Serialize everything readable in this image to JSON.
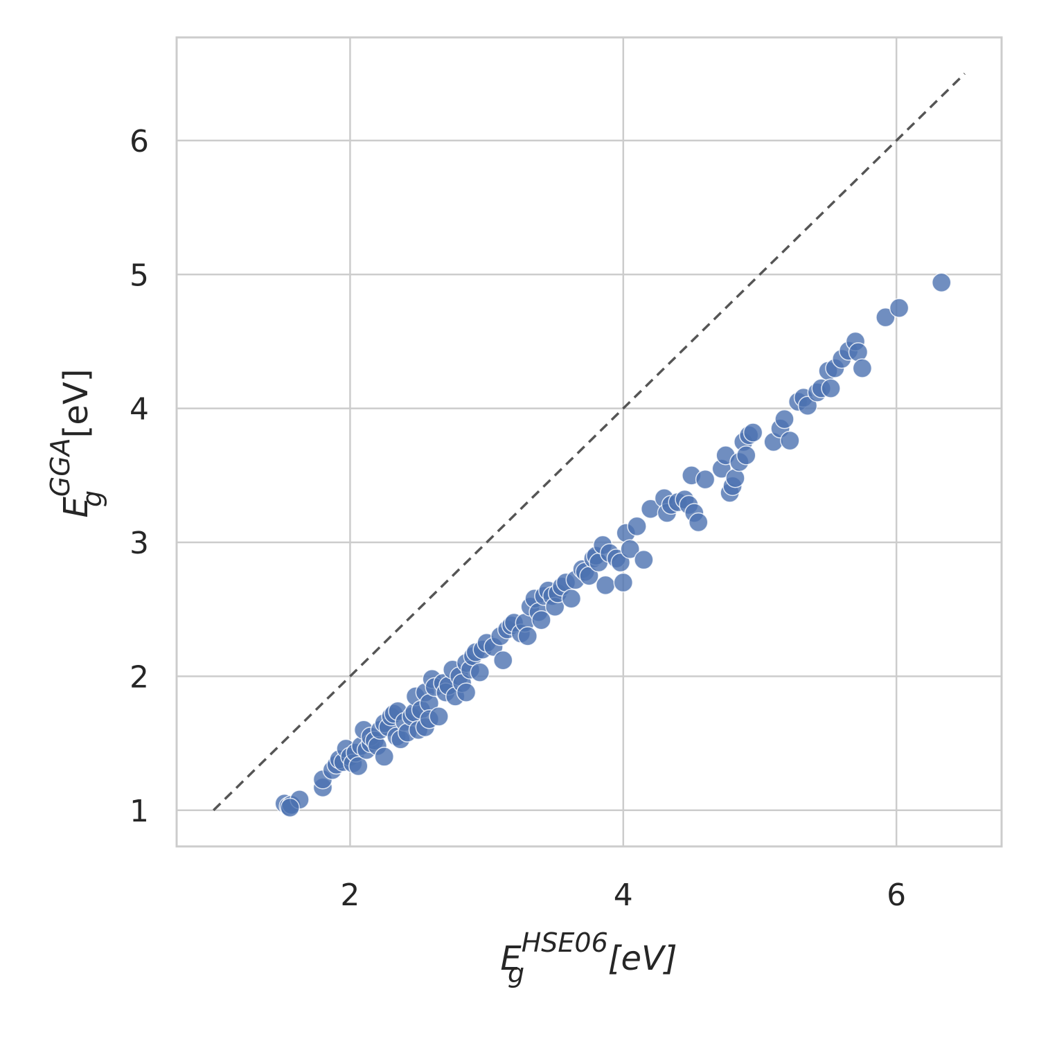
{
  "chart_data": {
    "type": "scatter",
    "xlabel": {
      "base": "E",
      "sub": "g",
      "sup": "HSE06",
      "unit": "[eV]"
    },
    "ylabel": {
      "base": "E",
      "sub": "g",
      "sup": "GGA",
      "unit": "[eV]"
    },
    "xlim": [
      0.73,
      6.77
    ],
    "ylim": [
      0.73,
      6.77
    ],
    "xticks": [
      2,
      4,
      6
    ],
    "yticks": [
      1,
      2,
      3,
      4,
      5,
      6
    ],
    "xtick_labels": [
      "2",
      "4",
      "6"
    ],
    "ytick_labels": [
      "1",
      "2",
      "3",
      "4",
      "5",
      "6"
    ],
    "grid": true,
    "point_color": "#4c72b0",
    "reference_line": {
      "style": "dashed",
      "color": "#555555",
      "x": [
        1.0,
        6.5
      ],
      "y": [
        1.0,
        6.5
      ]
    },
    "points": [
      [
        1.52,
        1.05
      ],
      [
        1.55,
        1.03
      ],
      [
        1.57,
        1.04
      ],
      [
        1.63,
        1.08
      ],
      [
        1.56,
        1.02
      ],
      [
        1.8,
        1.17
      ],
      [
        1.8,
        1.23
      ],
      [
        1.87,
        1.3
      ],
      [
        1.9,
        1.34
      ],
      [
        1.92,
        1.38
      ],
      [
        1.95,
        1.36
      ],
      [
        1.97,
        1.46
      ],
      [
        2.0,
        1.4
      ],
      [
        2.02,
        1.35
      ],
      [
        2.04,
        1.43
      ],
      [
        2.06,
        1.33
      ],
      [
        2.08,
        1.48
      ],
      [
        2.1,
        1.6
      ],
      [
        2.12,
        1.45
      ],
      [
        2.15,
        1.5
      ],
      [
        2.15,
        1.55
      ],
      [
        2.18,
        1.52
      ],
      [
        2.2,
        1.48
      ],
      [
        2.22,
        1.6
      ],
      [
        2.25,
        1.65
      ],
      [
        2.25,
        1.4
      ],
      [
        2.28,
        1.62
      ],
      [
        2.3,
        1.7
      ],
      [
        2.32,
        1.72
      ],
      [
        2.34,
        1.55
      ],
      [
        2.35,
        1.74
      ],
      [
        2.37,
        1.53
      ],
      [
        2.4,
        1.66
      ],
      [
        2.42,
        1.58
      ],
      [
        2.45,
        1.7
      ],
      [
        2.47,
        1.73
      ],
      [
        2.48,
        1.85
      ],
      [
        2.5,
        1.6
      ],
      [
        2.52,
        1.75
      ],
      [
        2.55,
        1.62
      ],
      [
        2.55,
        1.88
      ],
      [
        2.58,
        1.8
      ],
      [
        2.58,
        1.68
      ],
      [
        2.6,
        1.98
      ],
      [
        2.62,
        1.92
      ],
      [
        2.65,
        1.7
      ],
      [
        2.68,
        1.95
      ],
      [
        2.7,
        1.88
      ],
      [
        2.72,
        1.93
      ],
      [
        2.75,
        2.05
      ],
      [
        2.77,
        1.85
      ],
      [
        2.8,
        2.0
      ],
      [
        2.82,
        1.95
      ],
      [
        2.85,
        2.1
      ],
      [
        2.85,
        1.88
      ],
      [
        2.88,
        2.05
      ],
      [
        2.9,
        2.15
      ],
      [
        2.92,
        2.18
      ],
      [
        2.95,
        2.03
      ],
      [
        2.97,
        2.2
      ],
      [
        3.0,
        2.25
      ],
      [
        3.05,
        2.22
      ],
      [
        3.1,
        2.3
      ],
      [
        3.12,
        2.12
      ],
      [
        3.15,
        2.35
      ],
      [
        3.18,
        2.38
      ],
      [
        3.2,
        2.4
      ],
      [
        3.25,
        2.32
      ],
      [
        3.28,
        2.4
      ],
      [
        3.3,
        2.3
      ],
      [
        3.32,
        2.52
      ],
      [
        3.35,
        2.58
      ],
      [
        3.38,
        2.48
      ],
      [
        3.4,
        2.42
      ],
      [
        3.42,
        2.6
      ],
      [
        3.45,
        2.64
      ],
      [
        3.48,
        2.6
      ],
      [
        3.5,
        2.52
      ],
      [
        3.52,
        2.62
      ],
      [
        3.55,
        2.67
      ],
      [
        3.58,
        2.7
      ],
      [
        3.62,
        2.58
      ],
      [
        3.65,
        2.72
      ],
      [
        3.7,
        2.8
      ],
      [
        3.72,
        2.78
      ],
      [
        3.75,
        2.75
      ],
      [
        3.78,
        2.88
      ],
      [
        3.8,
        2.9
      ],
      [
        3.82,
        2.85
      ],
      [
        3.85,
        2.98
      ],
      [
        3.87,
        2.68
      ],
      [
        3.9,
        2.92
      ],
      [
        3.95,
        2.88
      ],
      [
        3.98,
        2.85
      ],
      [
        4.0,
        2.7
      ],
      [
        4.02,
        3.07
      ],
      [
        4.05,
        2.95
      ],
      [
        4.1,
        3.12
      ],
      [
        4.15,
        2.87
      ],
      [
        4.2,
        3.25
      ],
      [
        4.3,
        3.33
      ],
      [
        4.32,
        3.22
      ],
      [
        4.35,
        3.28
      ],
      [
        4.4,
        3.3
      ],
      [
        4.45,
        3.32
      ],
      [
        4.48,
        3.28
      ],
      [
        4.5,
        3.5
      ],
      [
        4.52,
        3.22
      ],
      [
        4.55,
        3.15
      ],
      [
        4.6,
        3.47
      ],
      [
        4.72,
        3.55
      ],
      [
        4.75,
        3.65
      ],
      [
        4.78,
        3.37
      ],
      [
        4.8,
        3.42
      ],
      [
        4.82,
        3.48
      ],
      [
        4.85,
        3.6
      ],
      [
        4.88,
        3.75
      ],
      [
        4.9,
        3.65
      ],
      [
        4.92,
        3.8
      ],
      [
        4.95,
        3.82
      ],
      [
        5.1,
        3.75
      ],
      [
        5.15,
        3.85
      ],
      [
        5.18,
        3.92
      ],
      [
        5.22,
        3.76
      ],
      [
        5.28,
        4.05
      ],
      [
        5.32,
        4.08
      ],
      [
        5.35,
        4.02
      ],
      [
        5.42,
        4.12
      ],
      [
        5.45,
        4.15
      ],
      [
        5.5,
        4.28
      ],
      [
        5.52,
        4.15
      ],
      [
        5.55,
        4.3
      ],
      [
        5.6,
        4.37
      ],
      [
        5.65,
        4.43
      ],
      [
        5.7,
        4.5
      ],
      [
        5.72,
        4.42
      ],
      [
        5.75,
        4.3
      ],
      [
        5.92,
        4.68
      ],
      [
        6.02,
        4.75
      ],
      [
        6.33,
        4.94
      ]
    ]
  }
}
